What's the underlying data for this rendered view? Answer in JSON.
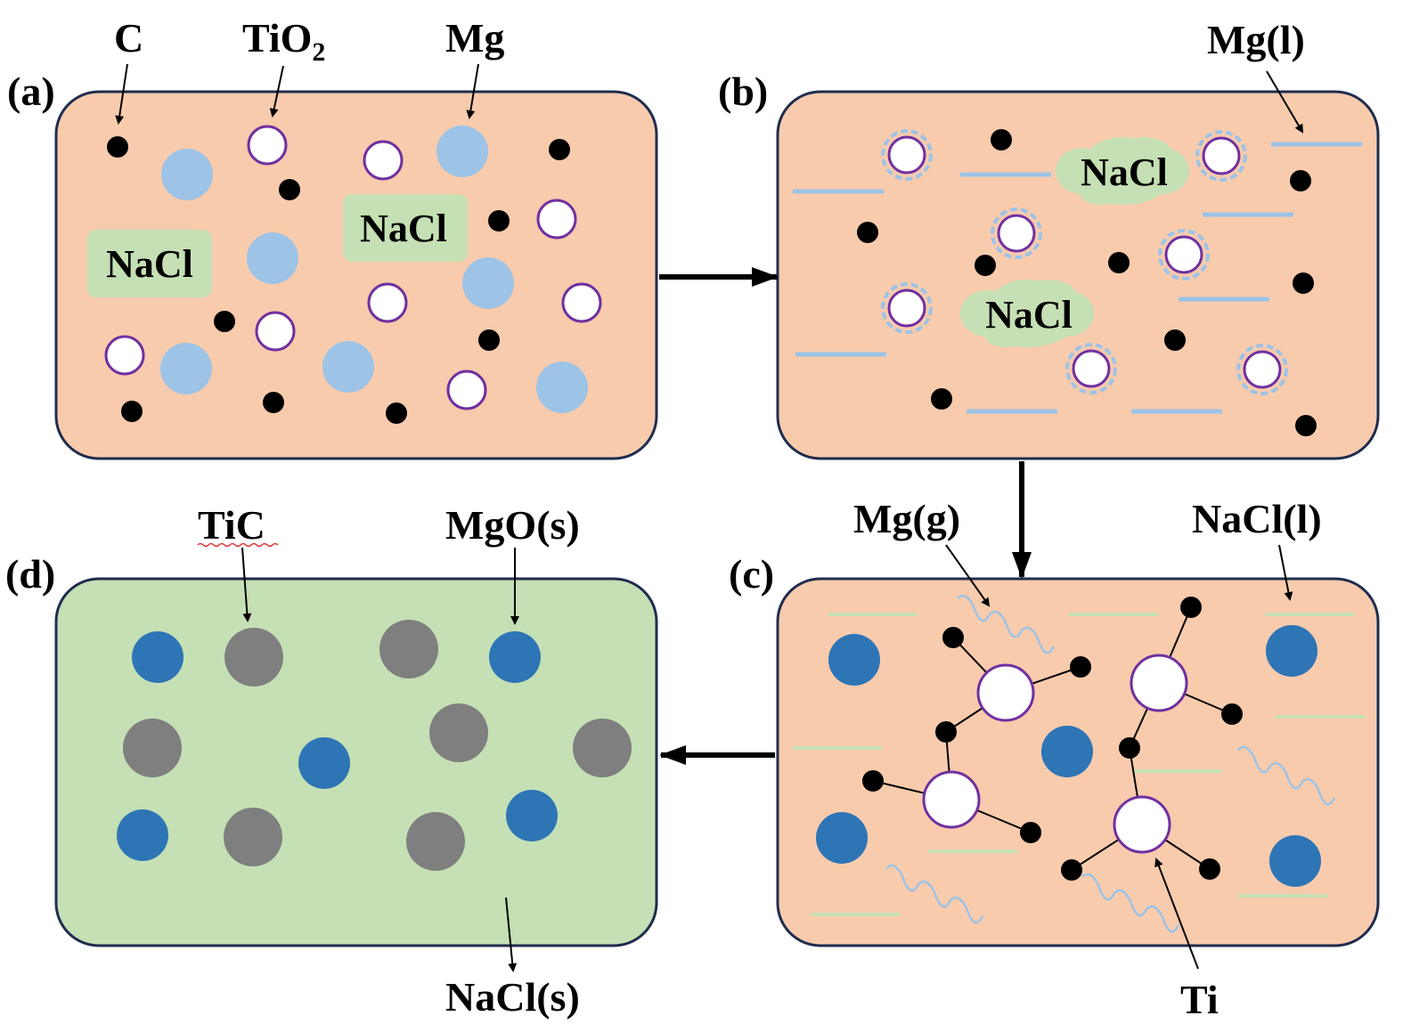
{
  "panels": {
    "a": {
      "tag": "(a)",
      "fill": "#f8cbad"
    },
    "b": {
      "tag": "(b)",
      "fill": "#f8cbad"
    },
    "c": {
      "tag": "(c)",
      "fill": "#f8cbad"
    },
    "d": {
      "tag": "(d)",
      "fill": "#c5e0b4"
    }
  },
  "labels": {
    "c": "C",
    "tio2_base": "TiO",
    "tio2_sub": "2",
    "mg": "Mg",
    "nacl": "NaCl",
    "mg_l": "Mg(l)",
    "mg_g": "Mg(g)",
    "nacl_l": "NaCl(l)",
    "tic": "TiC",
    "mgo_s": "MgO(s)",
    "nacl_s": "NaCl(s)",
    "ti": "Ti"
  },
  "colors": {
    "border": "#1f2d4e",
    "carbon": "#000000",
    "mg_particle": "#9dc3e6",
    "tio2_stroke": "#7030a0",
    "mgo": "#2e75b6",
    "tic": "#7f7f7f",
    "nacl_box": "#c5e0b4"
  }
}
